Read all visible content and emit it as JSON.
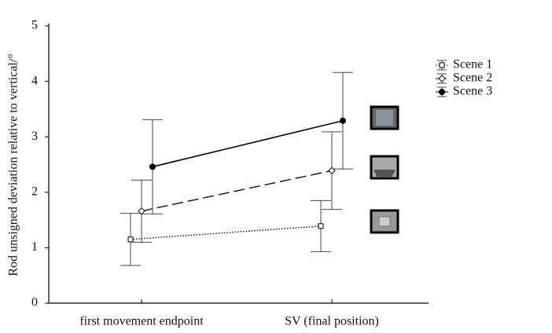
{
  "chart_data": {
    "type": "line",
    "y_label": "Rod unsigned deviation relative to vertical/°",
    "categories": [
      "first movement endpoint",
      "SV (final position)"
    ],
    "series": [
      {
        "name": "Scene 1",
        "color": "#000000",
        "line_style": "dotted",
        "marker": "square",
        "values": [
          1.15,
          1.39
        ],
        "errors": [
          0.47,
          0.46
        ]
      },
      {
        "name": "Scene 2",
        "color": "#000000",
        "line_style": "dashed",
        "marker": "diamond",
        "values": [
          1.66,
          2.39
        ],
        "errors": [
          0.56,
          0.7
        ]
      },
      {
        "name": "Scene 3",
        "color": "#000000",
        "line_style": "solid",
        "marker": "circle",
        "values": [
          2.46,
          3.29
        ],
        "errors": [
          0.85,
          0.87
        ]
      }
    ],
    "ylim": [
      0,
      5
    ],
    "yticks": [
      0,
      1,
      2,
      3,
      4,
      5
    ],
    "grid": false,
    "legend": "top-right"
  }
}
